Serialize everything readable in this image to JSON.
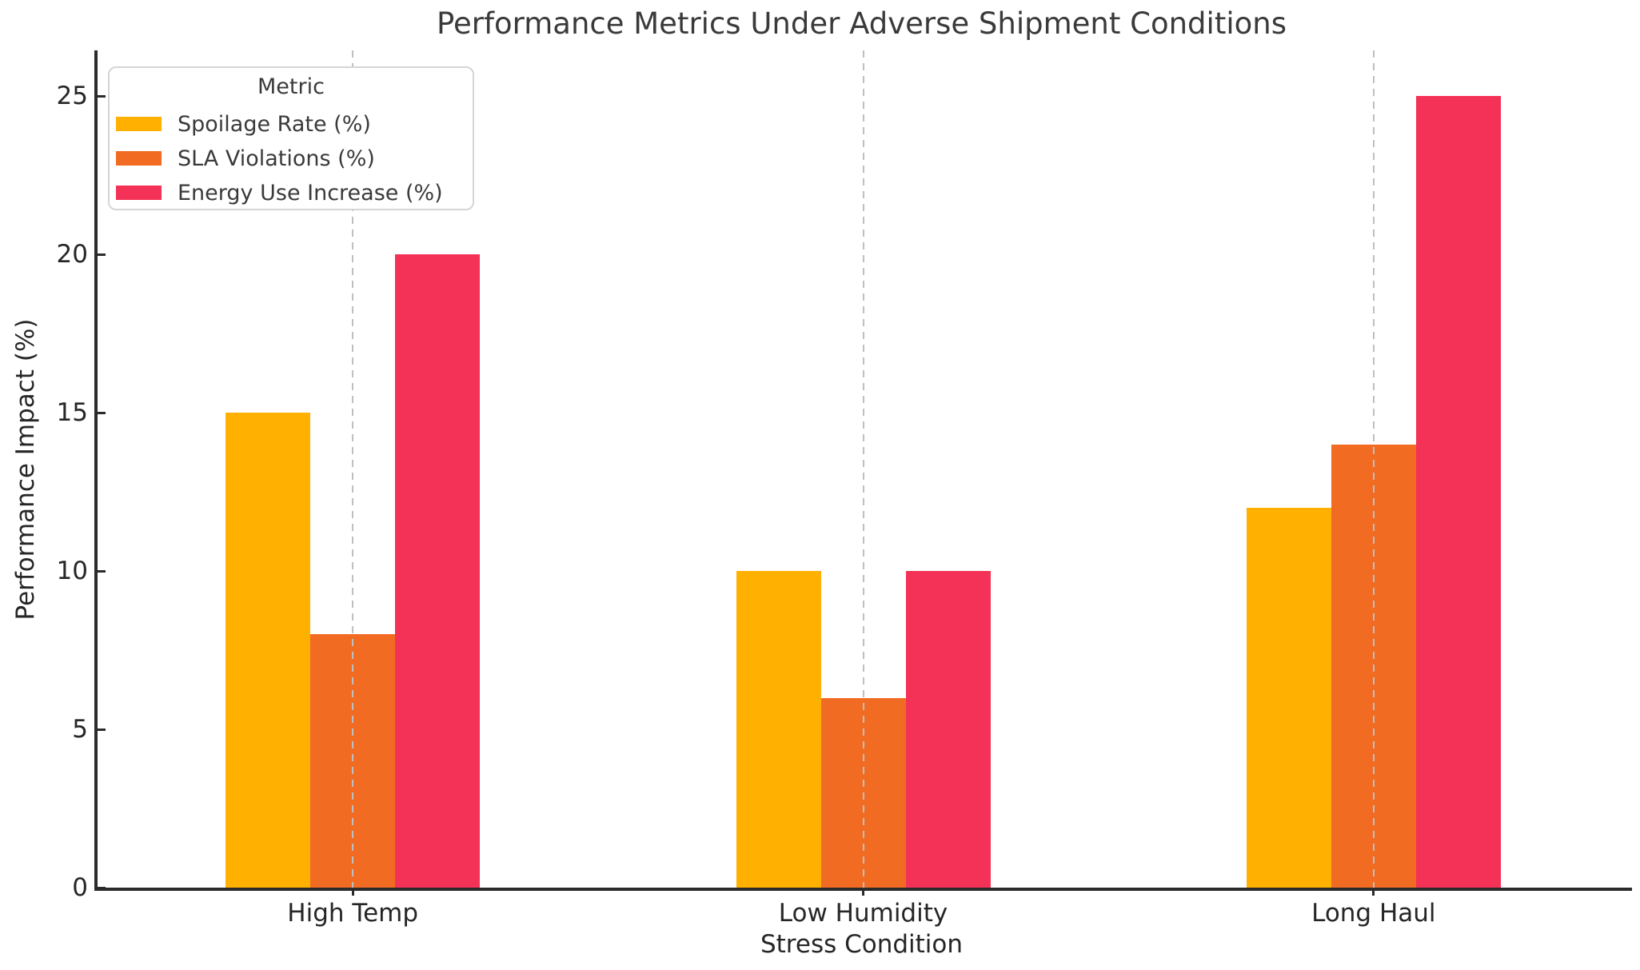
{
  "colors": {
    "spoilage": "#FFB000",
    "sla": "#F26B22",
    "energy": "#F43156",
    "axis": "#2B2B2B",
    "grid": "#BFBFBF",
    "title_text": "#3A3A3A",
    "tick_text": "#262626"
  },
  "chart_data": {
    "type": "bar",
    "title": "Performance Metrics Under Adverse Shipment Conditions",
    "xlabel": "Stress Condition",
    "ylabel": "Performance Impact (%)",
    "categories": [
      "High Temp",
      "Low Humidity",
      "Long Haul"
    ],
    "series": [
      {
        "name": "Spoilage Rate (%)",
        "color": "#FFB000",
        "values": [
          15,
          10,
          12
        ]
      },
      {
        "name": "SLA Violations (%)",
        "color": "#F26B22",
        "values": [
          8,
          6,
          14
        ]
      },
      {
        "name": "Energy Use Increase (%)",
        "color": "#F43156",
        "values": [
          20,
          10,
          25
        ]
      }
    ],
    "legend_title": "Metric",
    "legend_position": "upper left",
    "ylim": [
      0,
      26.45
    ],
    "yticks": [
      0,
      5,
      10,
      15,
      20,
      25
    ],
    "grid": "vertical-dashed-at-category-centers"
  }
}
